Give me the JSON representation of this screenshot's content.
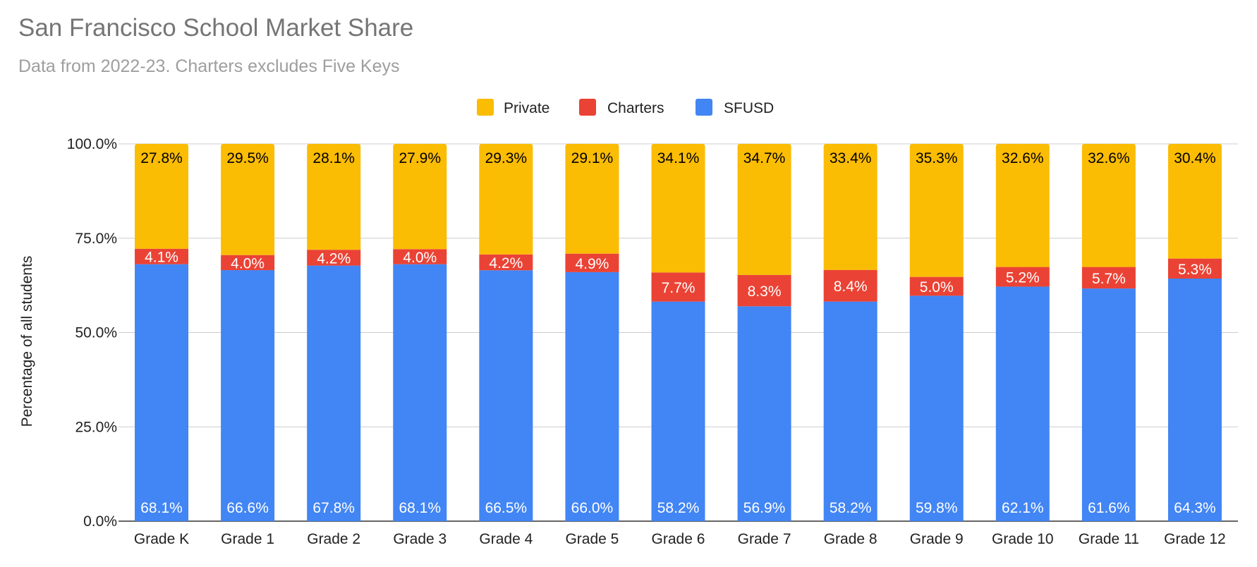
{
  "chart_data": {
    "type": "bar",
    "stacked": true,
    "title": "San Francisco School Market Share",
    "subtitle": "Data from 2022-23. Charters excludes Five Keys",
    "xlabel": "",
    "ylabel": "Percentage of all students",
    "ylim": [
      0,
      100
    ],
    "yticks": [
      "0.0%",
      "25.0%",
      "50.0%",
      "75.0%",
      "100.0%"
    ],
    "ytick_values": [
      0,
      25,
      50,
      75,
      100
    ],
    "legend_position": "top-center",
    "categories": [
      "Grade K",
      "Grade 1",
      "Grade 2",
      "Grade 3",
      "Grade 4",
      "Grade 5",
      "Grade 6",
      "Grade 7",
      "Grade 8",
      "Grade 9",
      "Grade 10",
      "Grade 11",
      "Grade 12"
    ],
    "series": [
      {
        "name": "SFUSD",
        "color": "#4285f4",
        "label_color": "#ffffff",
        "values": [
          68.1,
          66.6,
          67.8,
          68.1,
          66.5,
          66.0,
          58.2,
          56.9,
          58.2,
          59.8,
          62.1,
          61.6,
          64.3
        ],
        "labels": [
          "68.1%",
          "66.6%",
          "67.8%",
          "68.1%",
          "66.5%",
          "66.0%",
          "58.2%",
          "56.9%",
          "58.2%",
          "59.8%",
          "62.1%",
          "61.6%",
          "64.3%"
        ]
      },
      {
        "name": "Charters",
        "color": "#ea4335",
        "label_color": "#ffffff",
        "values": [
          4.1,
          4.0,
          4.2,
          4.0,
          4.2,
          4.9,
          7.7,
          8.3,
          8.4,
          5.0,
          5.2,
          5.7,
          5.3
        ],
        "labels": [
          "4.1%",
          "4.0%",
          "4.2%",
          "4.0%",
          "4.2%",
          "4.9%",
          "7.7%",
          "8.3%",
          "8.4%",
          "5.0%",
          "5.2%",
          "5.7%",
          "5.3%"
        ]
      },
      {
        "name": "Private",
        "color": "#fbbc04",
        "label_color": "#000000",
        "values": [
          27.8,
          29.5,
          28.1,
          27.9,
          29.3,
          29.1,
          34.1,
          34.7,
          33.4,
          35.3,
          32.6,
          32.6,
          30.4
        ],
        "labels": [
          "27.8%",
          "29.5%",
          "28.1%",
          "27.9%",
          "29.3%",
          "29.1%",
          "34.1%",
          "34.7%",
          "33.4%",
          "35.3%",
          "32.6%",
          "32.6%",
          "30.4%"
        ]
      }
    ],
    "legend_order": [
      "Private",
      "Charters",
      "SFUSD"
    ],
    "grid": true
  }
}
